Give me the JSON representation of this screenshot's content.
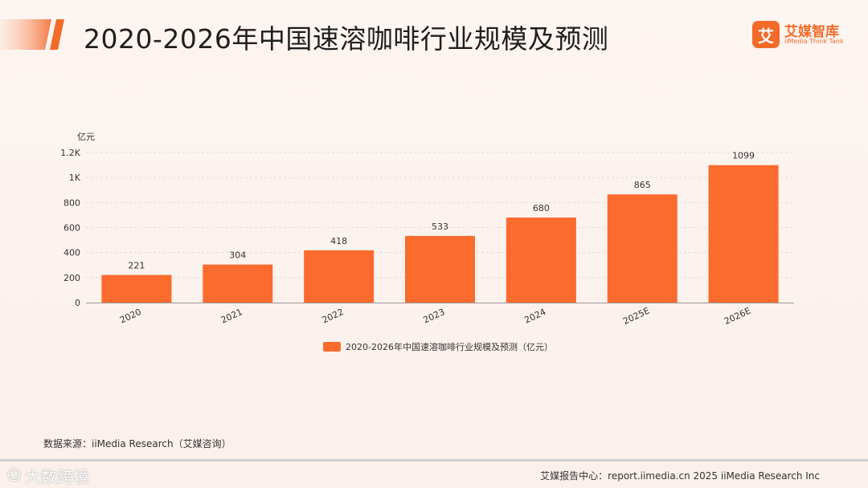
{
  "title": "2020-2026年中国速溶咖啡行业规模及预测",
  "logo": {
    "badge": "艾",
    "name": "艾媒智库",
    "sub": "iiMedia Think Tank"
  },
  "source": "数据来源：iiMedia Research（艾媒咨询）",
  "footer": "艾媒报告中心：report.iimedia.cn   2025 iiMedia Research Inc",
  "watermark": {
    "icon": "☺",
    "text": "大数跨境"
  },
  "colors": {
    "accent": "#f26b2a",
    "bar": "#fb6b2d"
  },
  "chart_data": {
    "type": "bar",
    "title": "",
    "ylabel": "亿元",
    "xlabel": "",
    "categories": [
      "2020",
      "2021",
      "2022",
      "2023",
      "2024",
      "2025E",
      "2026E"
    ],
    "values": [
      221,
      304,
      418,
      533,
      680,
      865,
      1099
    ],
    "ylim": [
      0,
      1200
    ],
    "yticks": [
      0,
      200,
      400,
      600,
      800,
      1000,
      1200
    ],
    "ytick_labels": [
      "0",
      "200",
      "400",
      "600",
      "800",
      "1K",
      "1.2K"
    ],
    "series_name": "2020-2026年中国速溶咖啡行业规模及预测（亿元）",
    "legend_position": "bottom-center",
    "grid": true
  }
}
